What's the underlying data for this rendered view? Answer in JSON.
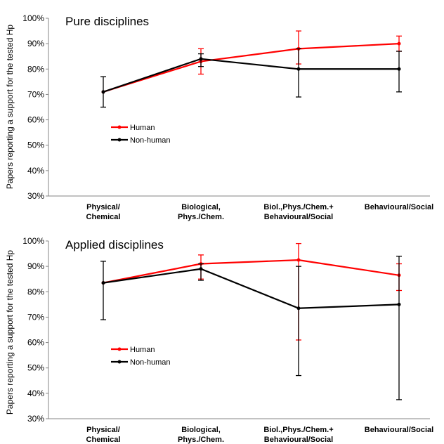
{
  "ylabel": "Papers reporting a support for the tested Hp",
  "chart_data": [
    {
      "type": "line",
      "title": "Pure disciplines",
      "ylabel": "Papers reporting a support for the tested Hp",
      "ylim": [
        30,
        100
      ],
      "yticks": [
        "30%",
        "40%",
        "50%",
        "60%",
        "70%",
        "80%",
        "90%",
        "100%"
      ],
      "categories": [
        [
          "Physical/",
          "Chemical"
        ],
        [
          "Biological,",
          "Phys./Chem."
        ],
        [
          "Biol.,Phys./Chem.+",
          "Behavioural/Social"
        ],
        [
          "Behavioural/Social"
        ]
      ],
      "legend": "middle-left",
      "grid": false,
      "series": [
        {
          "name": "Human",
          "color": "#ff0000",
          "values": [
            71,
            83,
            88,
            90
          ],
          "err_low": [
            71,
            78,
            82,
            87
          ],
          "err_high": [
            71,
            88,
            95,
            93
          ]
        },
        {
          "name": "Non-human",
          "color": "#000000",
          "values": [
            71,
            84,
            80,
            80
          ],
          "err_low": [
            65,
            81,
            69,
            71
          ],
          "err_high": [
            77,
            86,
            88,
            87
          ]
        }
      ]
    },
    {
      "type": "line",
      "title": "Applied disciplines",
      "ylabel": "Papers reporting a support for the tested Hp",
      "ylim": [
        30,
        100
      ],
      "yticks": [
        "30%",
        "40%",
        "50%",
        "60%",
        "70%",
        "80%",
        "90%",
        "100%"
      ],
      "categories": [
        [
          "Physical/",
          "Chemical"
        ],
        [
          "Biological,",
          "Phys./Chem."
        ],
        [
          "Biol.,Phys./Chem.+",
          "Behavioural/Social"
        ],
        [
          "Behavioural/Social"
        ]
      ],
      "legend": "middle-left",
      "grid": false,
      "series": [
        {
          "name": "Human",
          "color": "#ff0000",
          "values": [
            83.5,
            91,
            92.5,
            86.5
          ],
          "err_low": [
            83.5,
            85,
            61,
            80.5
          ],
          "err_high": [
            83.5,
            94.5,
            99,
            91
          ]
        },
        {
          "name": "Non-human",
          "color": "#000000",
          "values": [
            83.5,
            89,
            73.5,
            75
          ],
          "err_low": [
            69,
            84.5,
            47,
            37.5
          ],
          "err_high": [
            92,
            91,
            90,
            94
          ]
        }
      ]
    }
  ]
}
